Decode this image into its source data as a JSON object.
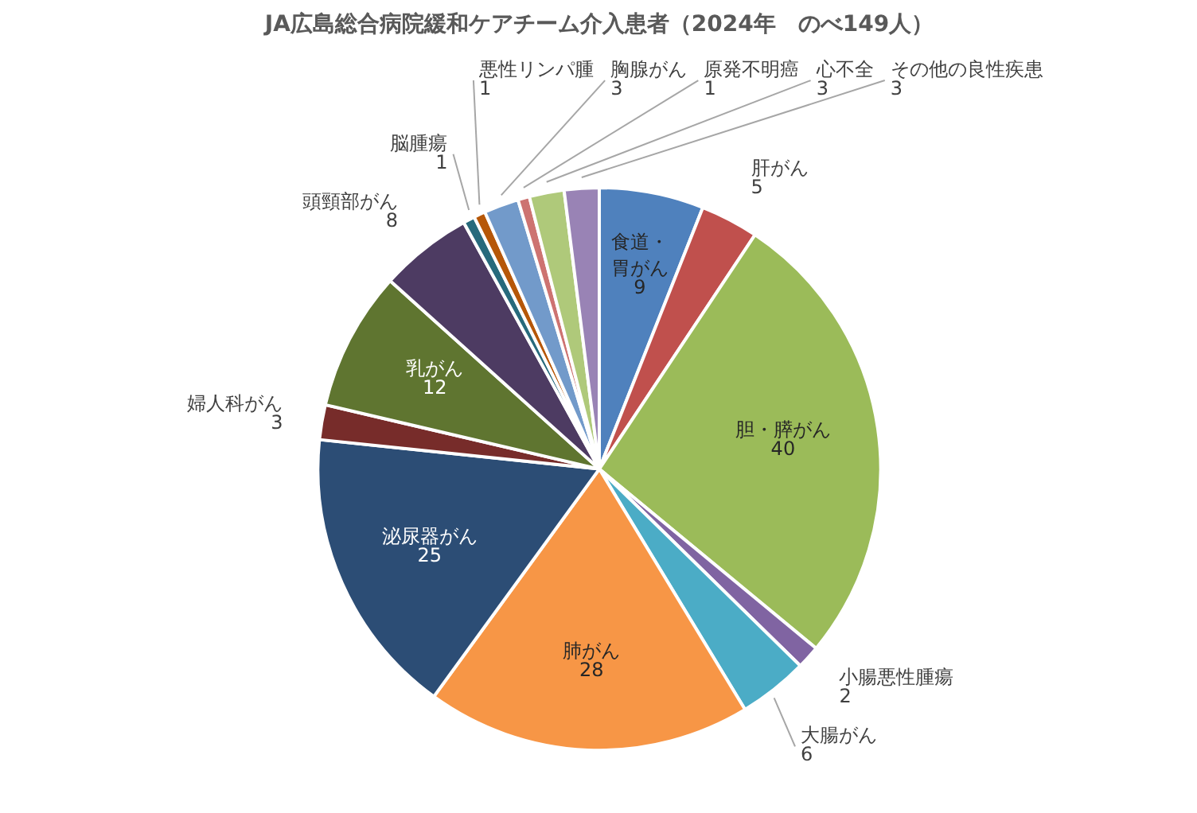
{
  "chart_data": {
    "type": "pie",
    "title": "JA広島総合病院緩和ケアチーム介入患者（2024年　のべ149人）",
    "categories": [
      "食道・胃がん",
      "肝がん",
      "胆・膵がん",
      "小腸悪性腫瘍",
      "大腸がん",
      "肺がん",
      "泌尿器がん",
      "婦人科がん",
      "乳がん",
      "頭頸部がん",
      "脳腫瘍",
      "悪性リンパ腫",
      "胸腺がん",
      "原発不明癌",
      "心不全",
      "その他の良性疾患"
    ],
    "values": [
      9,
      5,
      40,
      2,
      6,
      28,
      25,
      3,
      12,
      8,
      1,
      1,
      3,
      1,
      3,
      3
    ],
    "colors": [
      "#4f81bd",
      "#c0504d",
      "#9bbb59",
      "#8064a2",
      "#4bacc6",
      "#f79646",
      "#2c4d75",
      "#772c2a",
      "#5f7530",
      "#4d3b62",
      "#276a7c",
      "#b65708",
      "#729aca",
      "#cd7371",
      "#afc97a",
      "#9983b5"
    ],
    "data_labels": true
  }
}
